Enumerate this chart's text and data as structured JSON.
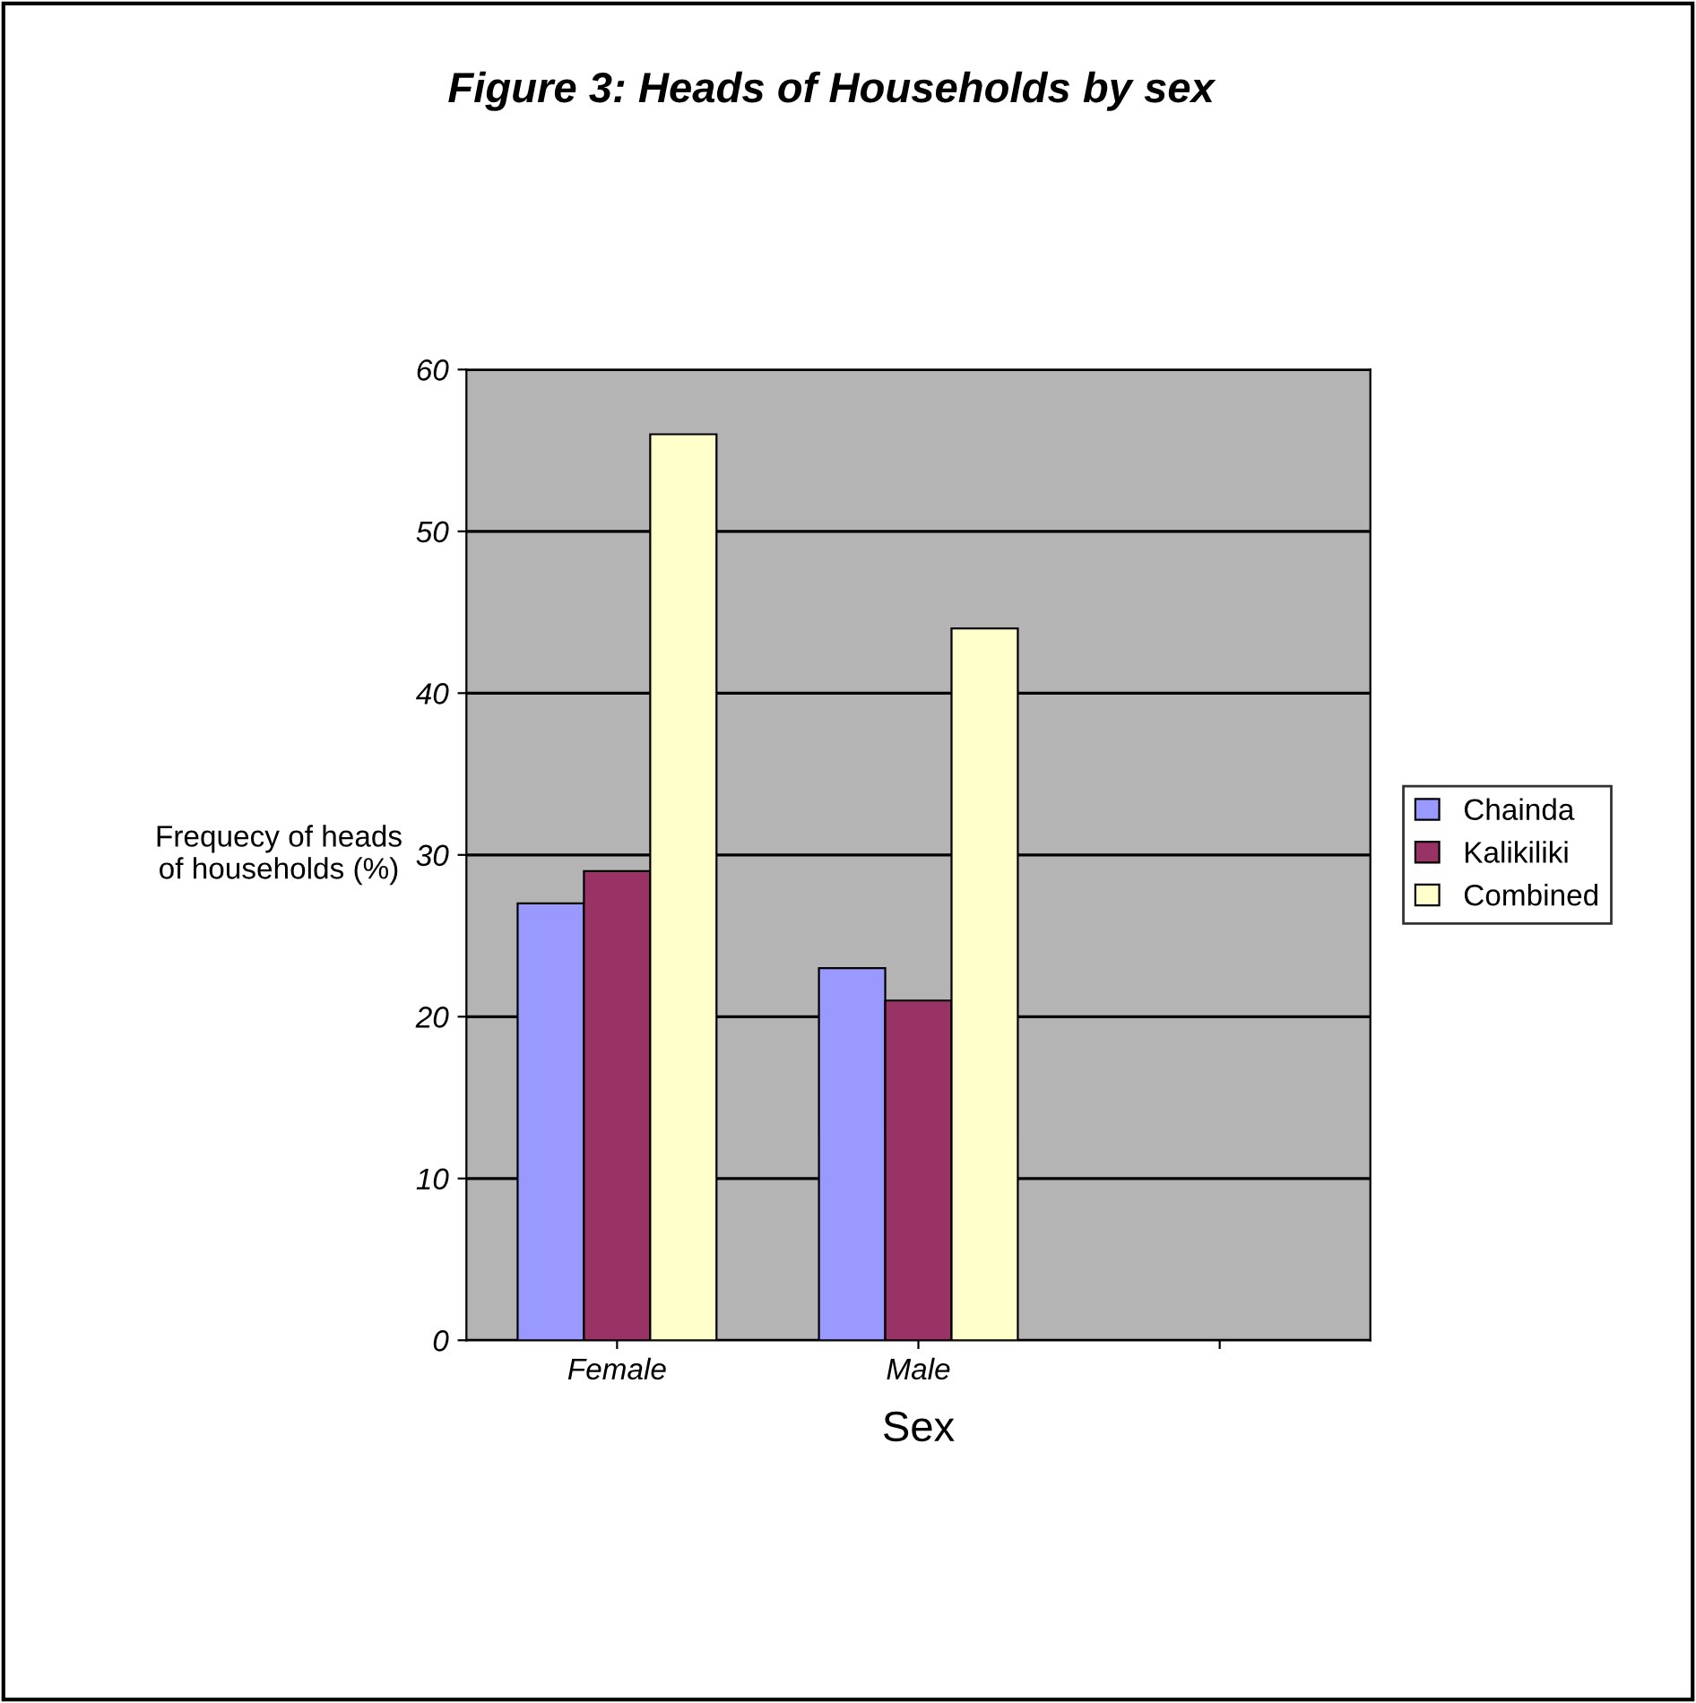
{
  "chart_data": {
    "type": "bar",
    "title": "Figure 3: Heads of Households by sex",
    "xlabel": "Sex",
    "ylabel": "Frequecy of heads\nof households (%)",
    "categories": [
      "Female",
      "Male",
      null
    ],
    "series": [
      {
        "name": "Chainda",
        "color": "#9999ff",
        "values": [
          27,
          23,
          null
        ]
      },
      {
        "name": "Kalikiliki",
        "color": "#993366",
        "values": [
          29,
          21,
          null
        ]
      },
      {
        "name": "Combined",
        "color": "#ffffcc",
        "values": [
          56,
          44,
          null
        ]
      }
    ],
    "ylim": [
      0,
      60
    ],
    "yticks": [
      0,
      10,
      20,
      30,
      40,
      50,
      60
    ],
    "grid": "y",
    "legend": "right"
  }
}
